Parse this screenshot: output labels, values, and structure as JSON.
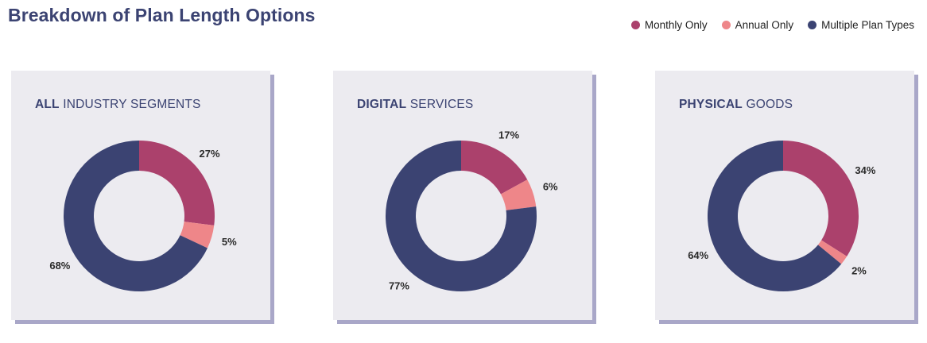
{
  "page": {
    "title": "Breakdown of Plan Length Options"
  },
  "legend": [
    {
      "label": "Monthly Only",
      "color": "#ab416c"
    },
    {
      "label": "Annual Only",
      "color": "#ee8689"
    },
    {
      "label": "Multiple Plan Types",
      "color": "#3b4372"
    }
  ],
  "chart_data": [
    {
      "type": "pie",
      "title_bold": "ALL",
      "title_rest": " INDUSTRY SEGMENTS",
      "categories": [
        "Monthly Only",
        "Annual Only",
        "Multiple Plan Types"
      ],
      "values": [
        27,
        5,
        68
      ],
      "labels": [
        "27%",
        "5%",
        "68%"
      ],
      "colors": [
        "#ab416c",
        "#ee8689",
        "#3b4372"
      ]
    },
    {
      "type": "pie",
      "title_bold": "DIGITAL",
      "title_rest": " SERVICES",
      "categories": [
        "Monthly Only",
        "Annual Only",
        "Multiple Plan Types"
      ],
      "values": [
        17,
        6,
        77
      ],
      "labels": [
        "17%",
        "6%",
        "77%"
      ],
      "colors": [
        "#ab416c",
        "#ee8689",
        "#3b4372"
      ]
    },
    {
      "type": "pie",
      "title_bold": "PHYSICAL",
      "title_rest": " GOODS",
      "categories": [
        "Monthly Only",
        "Annual Only",
        "Multiple Plan Types"
      ],
      "values": [
        34,
        2,
        64
      ],
      "labels": [
        "34%",
        "2%",
        "64%"
      ],
      "colors": [
        "#ab416c",
        "#ee8689",
        "#3b4372"
      ]
    }
  ]
}
